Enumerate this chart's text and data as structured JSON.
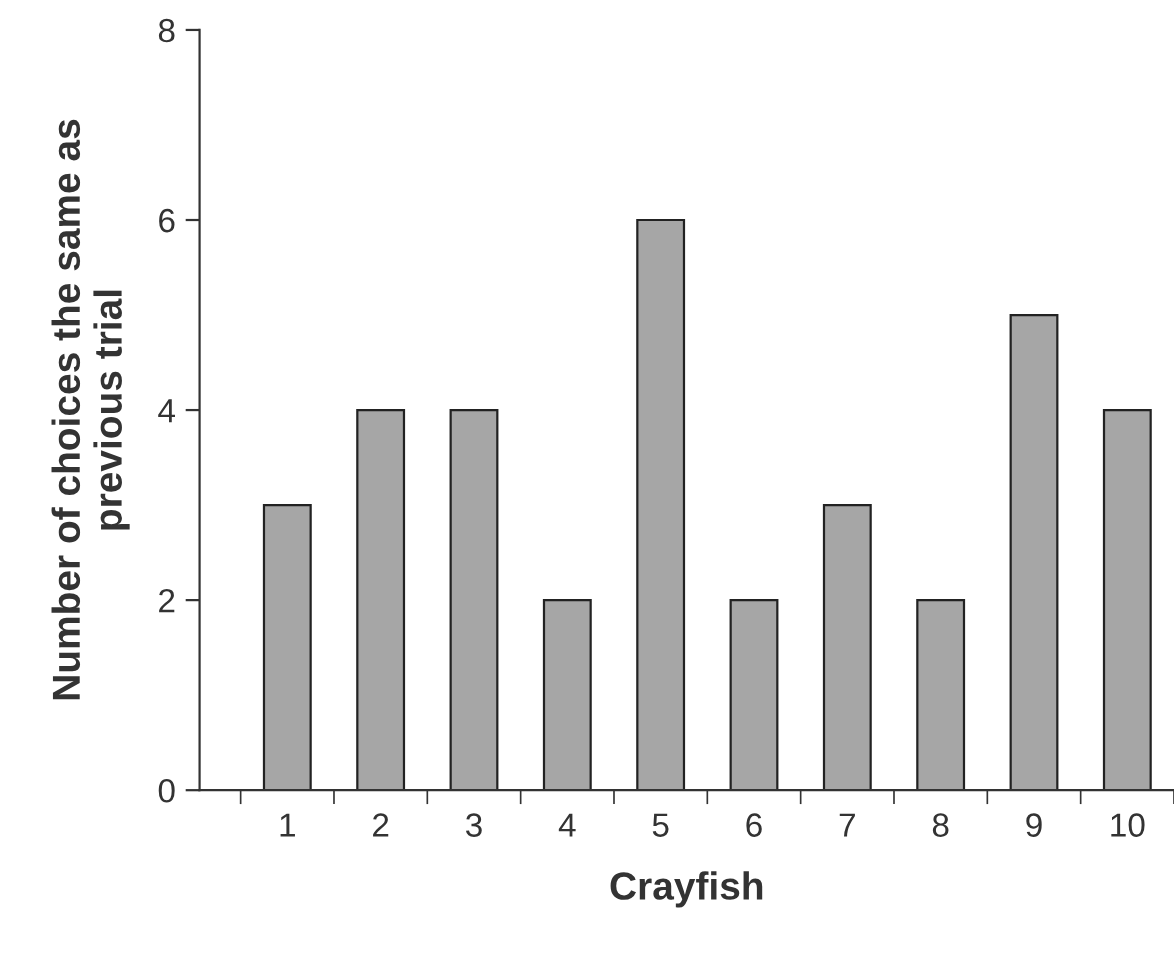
{
  "chart_data": {
    "type": "bar",
    "xlabel": "Crayfish",
    "ylabel": "Number of choices the same as\nprevious trial",
    "categories": [
      "1",
      "2",
      "3",
      "4",
      "5",
      "6",
      "7",
      "8",
      "9",
      "10"
    ],
    "values": [
      3,
      4,
      4,
      2,
      6,
      2,
      3,
      2,
      5,
      4
    ],
    "color": "#a6a6a6",
    "ylim": [
      0,
      8
    ],
    "yticks": [
      0,
      2,
      4,
      6,
      8
    ],
    "grid": false
  }
}
